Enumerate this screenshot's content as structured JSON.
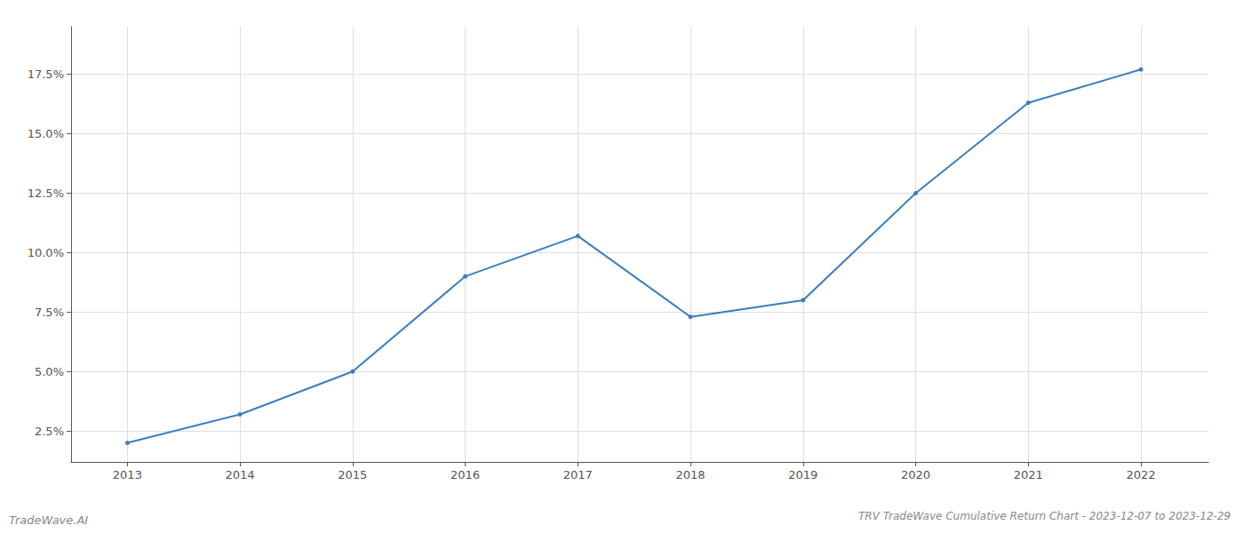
{
  "chart_data": {
    "type": "line",
    "title": "TRV TradeWave Cumulative Return Chart - 2023-12-07 to 2023-12-29",
    "annotations": [
      "TradeWave.AI"
    ],
    "x": [
      2013,
      2014,
      2015,
      2016,
      2017,
      2018,
      2019,
      2020,
      2021,
      2022
    ],
    "values": [
      2.0,
      3.2,
      5.0,
      9.0,
      10.7,
      7.3,
      8.0,
      12.5,
      16.3,
      17.7
    ],
    "color": "#3a7ebf",
    "xlim": [
      2012.5,
      2022.6
    ],
    "ylim": [
      1.2,
      19.5
    ],
    "xticks": [
      2013,
      2014,
      2015,
      2016,
      2017,
      2018,
      2019,
      2020,
      2021,
      2022
    ],
    "yticks": [
      {
        "value": 2.5,
        "label": "2.5%"
      },
      {
        "value": 5.0,
        "label": "5.0%"
      },
      {
        "value": 7.5,
        "label": "7.5%"
      },
      {
        "value": 10.0,
        "label": "10.0%"
      },
      {
        "value": 12.5,
        "label": "12.5%"
      },
      {
        "value": 15.0,
        "label": "15.0%"
      },
      {
        "value": 17.5,
        "label": "17.5%"
      }
    ],
    "grid": true
  }
}
